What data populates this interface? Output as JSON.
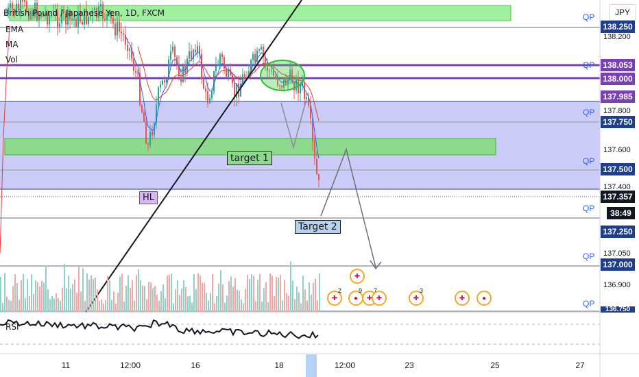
{
  "header": {
    "title": "British Pound / Japanese Yen, 1D, FXCM"
  },
  "indicators": [
    "EMA",
    "MA",
    "Vol"
  ],
  "rsi_label": "RSI",
  "currency": "JPY",
  "annotations": {
    "hl": "HL",
    "target1": "target 1",
    "target2": "Target 2"
  },
  "qp_label": "QP",
  "price_tags": {
    "p138250": "138.250",
    "p138053": "138.053",
    "p138000": "138.000",
    "p137985": "137.985",
    "p137750": "137.750",
    "p137500": "137.500",
    "p137357": "137.357",
    "countdown": "38:49",
    "p137250": "137.250",
    "p137000": "137.000",
    "p136750": "136.750"
  },
  "axis_labels": {
    "p138200": "138.200",
    "p137800": "137.800",
    "p137600": "137.600",
    "p137400": "137.400",
    "p137050": "137.050",
    "p136900": "136.900"
  },
  "event_counts": [
    "2",
    "9",
    "7",
    "3"
  ],
  "colors": {
    "up": "#26a69a",
    "down": "#ef5350",
    "bg": "#ffffff",
    "zone_blue": "#b3b3f5",
    "zone_green": "#88e088",
    "purple_tag": "#7b3fb5",
    "navy_tag": "#1e3f8f",
    "black_tag": "#131722"
  },
  "chart_data": {
    "type": "candlestick",
    "title": "British Pound / Japanese Yen, 1D, FXCM",
    "x_ticks": [
      "11",
      "12:00",
      "16",
      "18",
      "12:00",
      "23",
      "25",
      "27"
    ],
    "y_ticks": [
      "138.200",
      "137.800",
      "137.600",
      "137.400",
      "137.050",
      "136.900"
    ],
    "ylim": [
      136.75,
      138.45
    ],
    "last_price": 137.357,
    "zones": [
      {
        "color": "green",
        "price_top": 138.4,
        "price_bottom": 138.32
      },
      {
        "color": "blue",
        "price_top": 137.93,
        "price_bottom": 137.41
      },
      {
        "color": "green",
        "price_top": 137.62,
        "price_bottom": 137.55
      }
    ],
    "levels": [
      138.25,
      138.053,
      138.0,
      137.985,
      137.75,
      137.5,
      137.357,
      137.25,
      137.0,
      136.75
    ]
  }
}
